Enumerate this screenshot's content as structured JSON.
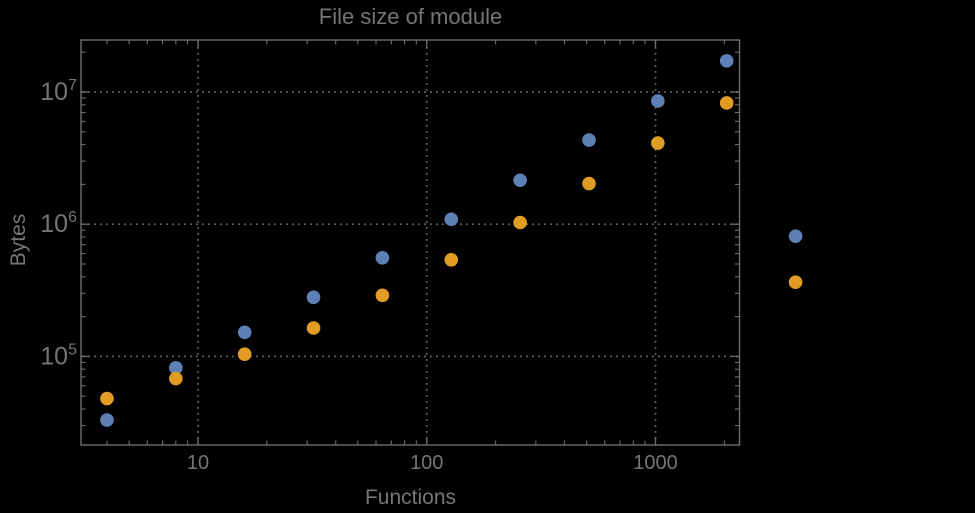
{
  "colors": {
    "background": "#000000",
    "frame": "#6e6e6e",
    "grid": "#626262",
    "text": "#757575",
    "series_blue": "#5e81b5",
    "series_orange": "#e19c24"
  },
  "axes": {
    "x": {
      "scale": "log",
      "ticks": [
        {
          "label": "10",
          "value": 10
        },
        {
          "label": "100",
          "value": 100
        },
        {
          "label": "1000",
          "value": 1000
        }
      ]
    },
    "y": {
      "scale": "log",
      "ticks": [
        {
          "base": "10",
          "exponent": "5",
          "value": 100000
        },
        {
          "base": "10",
          "exponent": "6",
          "value": 1000000
        },
        {
          "base": "10",
          "exponent": "7",
          "value": 10000000
        }
      ]
    }
  },
  "chart_data": {
    "type": "scatter",
    "title": "File size of module",
    "xlabel": "Functions",
    "ylabel": "Bytes",
    "x_scale": "log",
    "y_scale": "log",
    "x_range_shown": [
      3.1,
      2330
    ],
    "y_range_shown": [
      21000,
      24700000
    ],
    "grid": "dotted gridlines at decade positions, frame on all four sides with inward log ticks",
    "legend": "none",
    "x": [
      4,
      8,
      16,
      32,
      64,
      128,
      256,
      512,
      1024,
      2048,
      4096
    ],
    "series": [
      {
        "name": "blue",
        "color": "#5e81b5",
        "values": [
          33000,
          82000,
          152000,
          280000,
          557000,
          1090000,
          2150000,
          4330000,
          8550000,
          17200000,
          811000
        ]
      },
      {
        "name": "orange",
        "color": "#e19c24",
        "values": [
          48000,
          68000,
          104000,
          164000,
          290000,
          538000,
          1030000,
          2030000,
          4110000,
          8260000,
          364000
        ]
      }
    ],
    "note": "last x (4096) points are drawn outside the right edge of the plot frame, as in the source image"
  }
}
